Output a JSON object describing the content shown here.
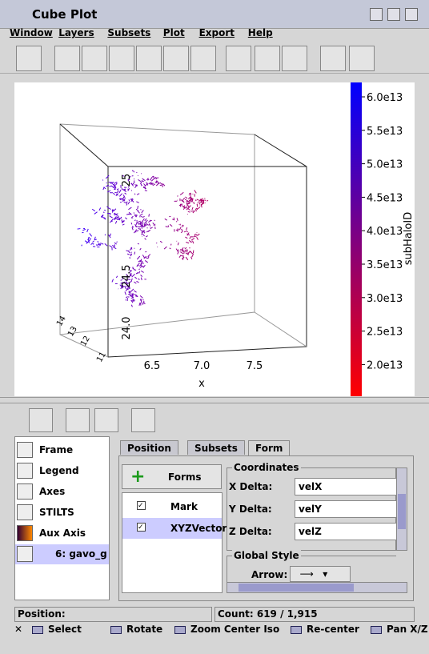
{
  "window": {
    "title": "Cube Plot"
  },
  "menu": [
    "Window",
    "Layers",
    "Subsets",
    "Plot",
    "Export",
    "Help"
  ],
  "plot": {
    "x_label": "x",
    "x_ticks": [
      "6.5",
      "7.0",
      "7.5"
    ],
    "y_ticks": [
      "25",
      "24.5",
      "24.0"
    ],
    "z_ticks": [
      "11",
      "12",
      "13",
      "14"
    ],
    "colorbar_label": "subHaloID",
    "colorbar_ticks": [
      "6.0e13",
      "5.5e13",
      "5.0e13",
      "4.5e13",
      "4.0e13",
      "3.5e13",
      "3.0e13",
      "2.5e13",
      "2.0e13"
    ]
  },
  "layers": [
    "Frame",
    "Legend",
    "Axes",
    "STILTS",
    "Aux Axis",
    "6: gavo_g"
  ],
  "tabs": [
    "Position",
    "Subsets",
    "Form"
  ],
  "forms_button": "Forms",
  "forms": [
    "Mark",
    "XYZVector"
  ],
  "coordinates": {
    "title": "Coordinates",
    "fields": [
      {
        "label": "X Delta:",
        "value": "velX"
      },
      {
        "label": "Y Delta:",
        "value": "velY"
      },
      {
        "label": "Z Delta:",
        "value": "velZ"
      }
    ]
  },
  "global_style": {
    "title": "Global Style",
    "arrow_label": "Arrow:"
  },
  "status": {
    "position": "Position:",
    "count": "Count: 619 / 1,915"
  },
  "modes": [
    "Select",
    "Rotate",
    "Zoom Center Iso",
    "Re-center",
    "Pan X/Z"
  ]
}
